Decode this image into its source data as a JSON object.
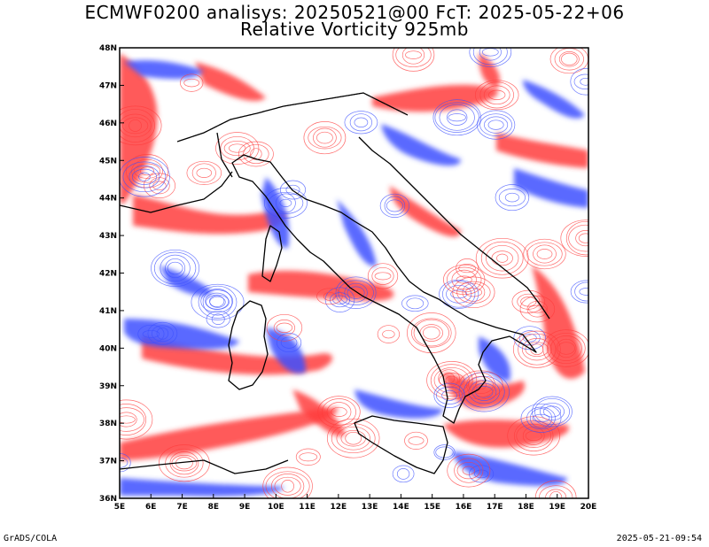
{
  "title_line1": "ECMWF0200 analisys: 20250521@00 FcT: 2025-05-22+06",
  "title_line2": "Relative Vorticity 925mb",
  "footer_left": "GrADS/COLA",
  "footer_right": "2025-05-21-09:54",
  "map": {
    "lon_range": [
      5,
      20
    ],
    "lat_range": [
      36,
      48
    ],
    "x_tick_labels": [
      "5E",
      "6E",
      "7E",
      "8E",
      "9E",
      "10E",
      "11E",
      "12E",
      "13E",
      "14E",
      "15E",
      "16E",
      "17E",
      "18E",
      "19E",
      "20E"
    ],
    "y_tick_labels": [
      "36N",
      "37N",
      "38N",
      "39N",
      "40N",
      "41N",
      "42N",
      "43N",
      "44N",
      "45N",
      "46N",
      "47N",
      "48N"
    ],
    "colors": {
      "positive_vorticity": "#ff3c3c",
      "negative_vorticity": "#3c50ff",
      "coastline": "#000000",
      "frame": "#000000"
    }
  }
}
